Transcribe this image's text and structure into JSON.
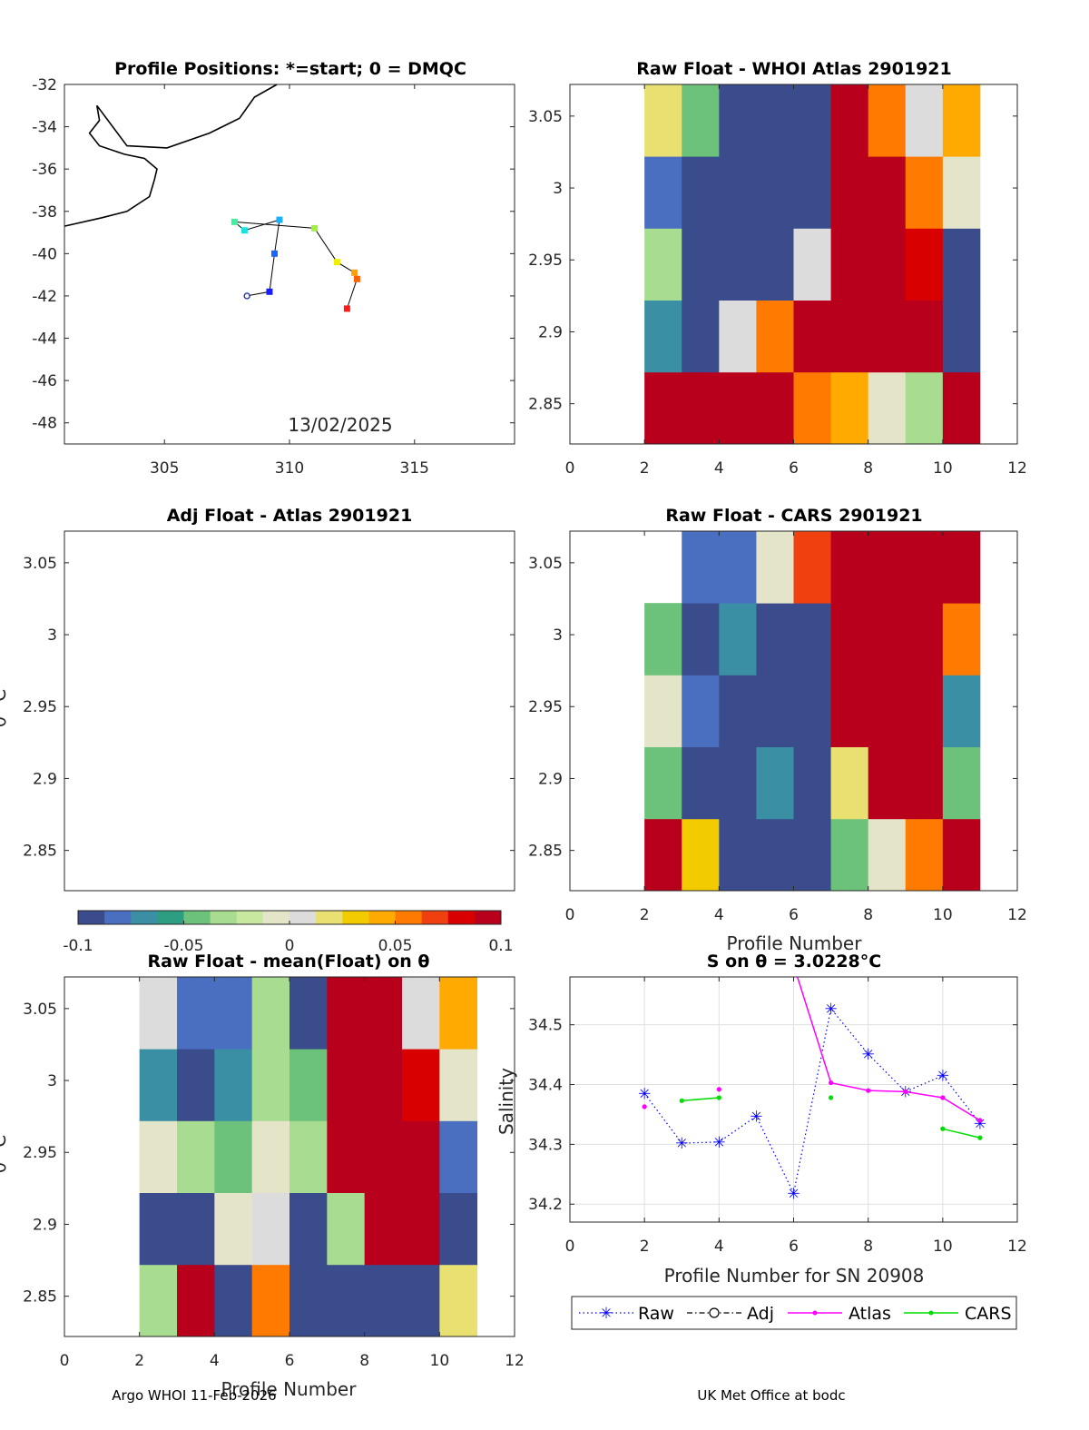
{
  "footer": {
    "left": "Argo WHOI 11-Feb-2026",
    "right": "UK Met Office at bodc"
  },
  "colorbar": {
    "ticks": [
      -0.1,
      -0.05,
      0,
      0.05,
      0.1
    ],
    "tick_labels": [
      "-0.1",
      "-0.05",
      "0",
      "0.05",
      "0.1"
    ],
    "colors": [
      "#3a4c8c",
      "#4a6fc0",
      "#3a8fa4",
      "#2e9e82",
      "#6cc27a",
      "#a8dc90",
      "#c8e8a0",
      "#e4e4c8",
      "#dcdcdc",
      "#e8e070",
      "#f2cc00",
      "#ffaa00",
      "#ff7a00",
      "#f04010",
      "#d80000",
      "#b8001c"
    ]
  },
  "chart_data": [
    {
      "id": "positions",
      "type": "scatter",
      "title": "Profile Positions: *=start; 0 = DMQC",
      "date_label": "13/02/2025",
      "xlim": [
        301,
        319
      ],
      "ylim": [
        -49,
        -32
      ],
      "xticks": [
        305,
        310,
        315
      ],
      "yticks": [
        -32,
        -34,
        -36,
        -38,
        -40,
        -42,
        -44,
        -46,
        -48
      ],
      "track_lon": [
        308.3,
        309.2,
        309.4,
        309.6,
        308.2,
        307.8,
        311.0,
        311.9,
        312.6,
        312.7,
        312.3
      ],
      "track_lat": [
        -42.0,
        -41.8,
        -40.0,
        -38.4,
        -38.9,
        -38.5,
        -38.8,
        -40.4,
        -40.9,
        -41.2,
        -42.6
      ],
      "track_colors": [
        "#ffffff",
        "#1a1aff",
        "#1a66ff",
        "#1ab2ff",
        "#1ae0e0",
        "#40f0a0",
        "#a0f040",
        "#f0f000",
        "#ffa000",
        "#ff6000",
        "#ff1a1a"
      ],
      "coast_lon": [
        301,
        302.5,
        303.5,
        304.4,
        304.6,
        304.7,
        304.2,
        303.4,
        302.4,
        302.0,
        302.4,
        302.3,
        303.5,
        305.1,
        306.8,
        308.0,
        308.6,
        309.5
      ],
      "coast_lat": [
        -38.7,
        -38.3,
        -38.0,
        -37.3,
        -36.5,
        -36.0,
        -35.5,
        -35.3,
        -34.9,
        -34.3,
        -33.7,
        -33.0,
        -34.9,
        -35.0,
        -34.3,
        -33.6,
        -32.6,
        -32.0
      ]
    },
    {
      "id": "whoi",
      "type": "heatmap",
      "title": "Raw Float - WHOI Atlas  2901921",
      "xlim": [
        0,
        12
      ],
      "ylim": [
        2.822,
        3.072
      ],
      "xticks": [
        0,
        2,
        4,
        6,
        8,
        10,
        12
      ],
      "yticks": [
        2.85,
        2.9,
        2.95,
        3,
        3.05
      ],
      "ytick_labels": [
        "2.85",
        "2.9",
        "2.95",
        "3",
        "3.05"
      ],
      "columns": [
        2,
        3,
        4,
        5,
        6,
        7,
        8,
        9,
        10
      ],
      "row_edges": [
        2.822,
        2.872,
        2.922,
        2.972,
        3.022,
        3.072
      ],
      "cells": [
        [
          0.1,
          0.1,
          0.1,
          0.1,
          0.06,
          0.04,
          -0.01,
          -0.03,
          0.1
        ],
        [
          -0.07,
          -0.1,
          0.0,
          0.06,
          0.1,
          0.1,
          0.1,
          0.1,
          -0.1
        ],
        [
          -0.03,
          -0.1,
          -0.1,
          -0.1,
          0.0,
          0.1,
          0.1,
          0.08,
          -0.1
        ],
        [
          -0.08,
          -0.09,
          -0.09,
          -0.1,
          -0.1,
          0.1,
          0.1,
          0.06,
          -0.01
        ],
        [
          0.02,
          -0.05,
          -0.1,
          -0.1,
          -0.1,
          0.1,
          0.06,
          0.0,
          0.04
        ]
      ]
    },
    {
      "id": "adj",
      "type": "heatmap",
      "title": "Adj Float - Atlas  2901921",
      "ylabel": "θ °C",
      "xlim": [
        0,
        12
      ],
      "ylim": [
        2.822,
        3.072
      ],
      "xticks": [],
      "yticks": [
        2.85,
        2.9,
        2.95,
        3,
        3.05
      ],
      "ytick_labels": [
        "2.85",
        "2.9",
        "2.95",
        "3",
        "3.05"
      ],
      "columns": [],
      "row_edges": [],
      "cells": []
    },
    {
      "id": "cars",
      "type": "heatmap",
      "title": "Raw Float - CARS  2901921",
      "xlabel": "Profile Number",
      "xlim": [
        0,
        12
      ],
      "ylim": [
        2.822,
        3.072
      ],
      "xticks": [
        0,
        2,
        4,
        6,
        8,
        10,
        12
      ],
      "yticks": [
        2.85,
        2.9,
        2.95,
        3,
        3.05
      ],
      "ytick_labels": [
        "2.85",
        "2.9",
        "2.95",
        "3",
        "3.05"
      ],
      "columns": [
        2,
        3,
        4,
        5,
        6,
        7,
        8,
        9,
        10
      ],
      "row_edges": [
        2.822,
        2.872,
        2.922,
        2.972,
        3.022,
        3.072
      ],
      "cells": [
        [
          0.1,
          0.03,
          -0.1,
          -0.1,
          -0.09,
          -0.04,
          -0.01,
          0.05,
          0.1
        ],
        [
          -0.05,
          -0.09,
          -0.1,
          -0.07,
          -0.1,
          0.02,
          0.1,
          0.1,
          -0.05
        ],
        [
          -0.01,
          -0.08,
          -0.1,
          -0.1,
          -0.1,
          0.1,
          0.1,
          0.1,
          -0.07
        ],
        [
          -0.05,
          -0.09,
          -0.07,
          -0.1,
          -0.1,
          0.1,
          0.1,
          0.1,
          0.05
        ],
        [
          null,
          -0.08,
          -0.08,
          -0.01,
          0.07,
          0.1,
          0.1,
          0.1,
          0.1
        ]
      ]
    },
    {
      "id": "mean",
      "type": "heatmap",
      "title": "Raw Float - mean(Float) on θ",
      "ylabel": "θ °C",
      "xlabel": "Profile Number",
      "xlim": [
        0,
        12
      ],
      "ylim": [
        2.822,
        3.072
      ],
      "xticks": [
        0,
        2,
        4,
        6,
        8,
        10,
        12
      ],
      "yticks": [
        2.85,
        2.9,
        2.95,
        3,
        3.05
      ],
      "ytick_labels": [
        "2.85",
        "2.9",
        "2.95",
        "3",
        "3.05"
      ],
      "columns": [
        2,
        3,
        4,
        5,
        6,
        7,
        8,
        9,
        10
      ],
      "row_edges": [
        2.822,
        2.872,
        2.922,
        2.972,
        3.022,
        3.072
      ],
      "cells": [
        [
          -0.03,
          0.1,
          -0.1,
          0.05,
          -0.1,
          -0.1,
          -0.1,
          -0.1,
          0.02
        ],
        [
          -0.1,
          -0.1,
          -0.01,
          0.0,
          -0.1,
          -0.03,
          0.1,
          0.1,
          -0.1
        ],
        [
          -0.01,
          -0.03,
          -0.04,
          -0.01,
          -0.03,
          0.1,
          0.1,
          0.1,
          -0.08
        ],
        [
          -0.07,
          -0.09,
          -0.07,
          -0.03,
          -0.05,
          0.1,
          0.1,
          0.08,
          -0.01
        ],
        [
          0.01,
          -0.08,
          -0.08,
          -0.03,
          -0.1,
          0.1,
          0.09,
          0.01,
          0.04
        ]
      ]
    },
    {
      "id": "salinity",
      "type": "line",
      "title": "S on θ = 3.0228°C",
      "xlabel": "Profile Number for SN 20908",
      "ylabel": "Salinity",
      "xlim": [
        0,
        12
      ],
      "ylim": [
        34.17,
        34.58
      ],
      "xticks": [
        0,
        2,
        4,
        6,
        8,
        10,
        12
      ],
      "yticks": [
        34.2,
        34.3,
        34.4,
        34.5
      ],
      "ytick_labels": [
        "34.2",
        "34.3",
        "34.4",
        "34.5"
      ],
      "grid": true,
      "legend": [
        "Raw",
        "Adj",
        "Atlas",
        "CARS"
      ],
      "series": [
        {
          "name": "Raw",
          "color": "#0000ff",
          "x": [
            2,
            3,
            4,
            5,
            6,
            7,
            8,
            9,
            10,
            11
          ],
          "y": [
            34.385,
            34.302,
            34.304,
            34.347,
            34.218,
            34.527,
            34.451,
            34.388,
            34.415,
            34.335
          ]
        },
        {
          "name": "Atlas",
          "color": "#ff00ff",
          "segments": [
            {
              "x": [
                2
              ],
              "y": [
                34.363
              ]
            },
            {
              "x": [
                4
              ],
              "y": [
                34.392
              ]
            },
            {
              "x": [
                6,
                7,
                8,
                9,
                10,
                11
              ],
              "y": [
                34.6,
                34.403,
                34.39,
                34.388,
                34.378,
                34.34
              ]
            }
          ]
        },
        {
          "name": "CARS",
          "color": "#00dd00",
          "segments": [
            {
              "x": [
                3,
                4
              ],
              "y": [
                34.373,
                34.378
              ]
            },
            {
              "x": [
                7
              ],
              "y": [
                34.378
              ]
            },
            {
              "x": [
                10,
                11
              ],
              "y": [
                34.326,
                34.311
              ]
            }
          ]
        }
      ]
    }
  ]
}
